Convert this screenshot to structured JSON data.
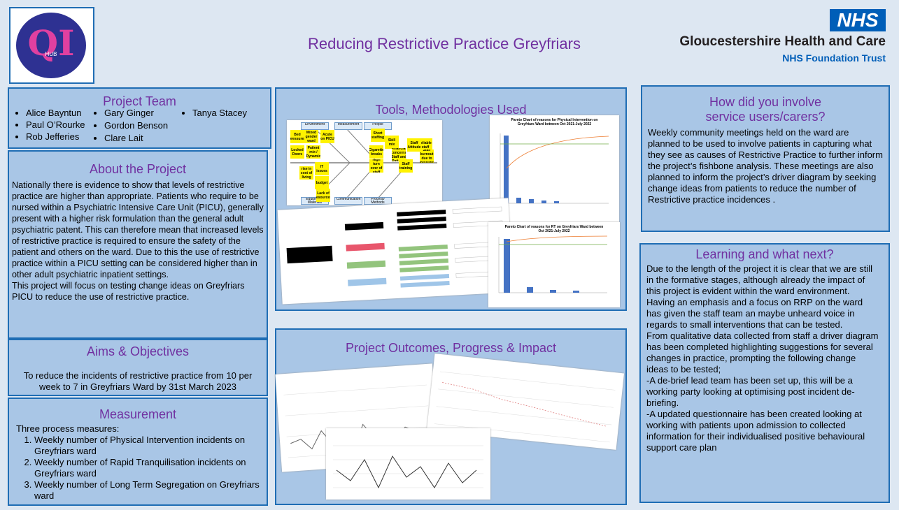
{
  "header": {
    "logo_main": "QI",
    "logo_sub": "HUB",
    "title": "Reducing Restrictive Practice Greyfriars",
    "nhs": "NHS",
    "org": "Gloucestershire Health and Care",
    "trust": "NHS Foundation Trust"
  },
  "team": {
    "title": "Project Team",
    "members": [
      "Alice Bayntun",
      "Paul O’Rourke",
      "Rob Jefferies",
      "Gary Ginger",
      "Gordon Benson",
      "Clare Lait",
      "Tanya Stacey"
    ]
  },
  "about": {
    "title": "About the Project",
    "paragraphs": [
      "Nationally there is evidence to show that levels of restrictive practice are higher than appropriate.  Patients who require to be nursed within a Psychiatric Intensive Care Unit (PICU), generally present with a higher risk formulation than the general adult psychiatric patent. This can therefore mean that increased levels of restrictive practice is required to ensure the safety of the patient and others on the ward. Due to this the use of restrictive practice within a PICU setting can be considered higher than in other adult psychiatric inpatient settings.",
      "This project will focus on testing change ideas on Greyfriars PICU to reduce the use of restrictive practice."
    ]
  },
  "aims": {
    "title": "Aims & Objectives",
    "text": "To reduce the incidents of restrictive practice from 10 per week to 7 in Greyfriars Ward by 31st March 2023"
  },
  "measurement": {
    "title": "Measurement",
    "intro": "Three process measures:",
    "items": [
      "Weekly number of Physical Intervention incidents on Greyfriars ward",
      "Weekly number of Rapid Tranquilisation incidents on Greyfriars ward",
      "Weekly number of Long Term Segregation on Greyfriars ward"
    ]
  },
  "tools": {
    "title": "Tools, Methodologies Used",
    "fishbone": {
      "categories": [
        "Environment",
        "Measurement",
        "People",
        "Equipment/ Materials",
        "Communication",
        "Process/ Methods"
      ],
      "notes": [
        "Bed pressures",
        "Mixed gender ward",
        "Acute on PICU",
        "Locked Doors",
        "Patient mix / Dynamic",
        "rise in cost of living",
        "IT issues",
        "budget",
        "Lack of resources",
        "Short staffing",
        "Skill mix",
        "Financial concerns Staff and Patients",
        "High turn over of staff",
        "Staff training",
        "reliable staff",
        "Staff Attitude",
        "Staff burnout due to pressures",
        "Cigarette breaks"
      ]
    },
    "pareto_1": "Pareto Chart of reasons for Physical Intervention on Greyfriars Ward between Oct 2021-July 2022",
    "pareto_2": "Pareto Chart of reasons for RT on Greyfriars Ward between Oct 2021-July 2022"
  },
  "outcomes": {
    "title": "Project Outcomes, Progress & Impact"
  },
  "involve": {
    "title": "How did you involve service users/carers?",
    "text": "Weekly community meetings held on the ward are planned to be used to involve patients in capturing what they see as causes of Restrictive Practice to further inform the project’s fishbone analysis. These meetings are also planned to inform the project’s driver diagram by seeking change ideas from patients to reduce the number of Restrictive practice incidences ."
  },
  "learning": {
    "title": "Learning and what next?",
    "paragraphs": [
      "Due to the length of the project it is clear that we are still in the formative stages, although already the impact of this project is evident within the ward environment.",
      "Having an emphasis and a focus on RRP on the ward has given the staff team an maybe unheard voice in regards to small interventions that can be tested.",
      "From qualitative data collected from staff a driver diagram has been completed highlighting suggestions for several changes in practice, prompting the following change ideas to be tested;",
      "-A de-brief lead team has been set up, this will be a working party looking at optimising post incident de-briefing.",
      "-A updated questionnaire has been created looking at working with patients upon admission to collected information for their individualised positive behavioural support care plan"
    ]
  }
}
